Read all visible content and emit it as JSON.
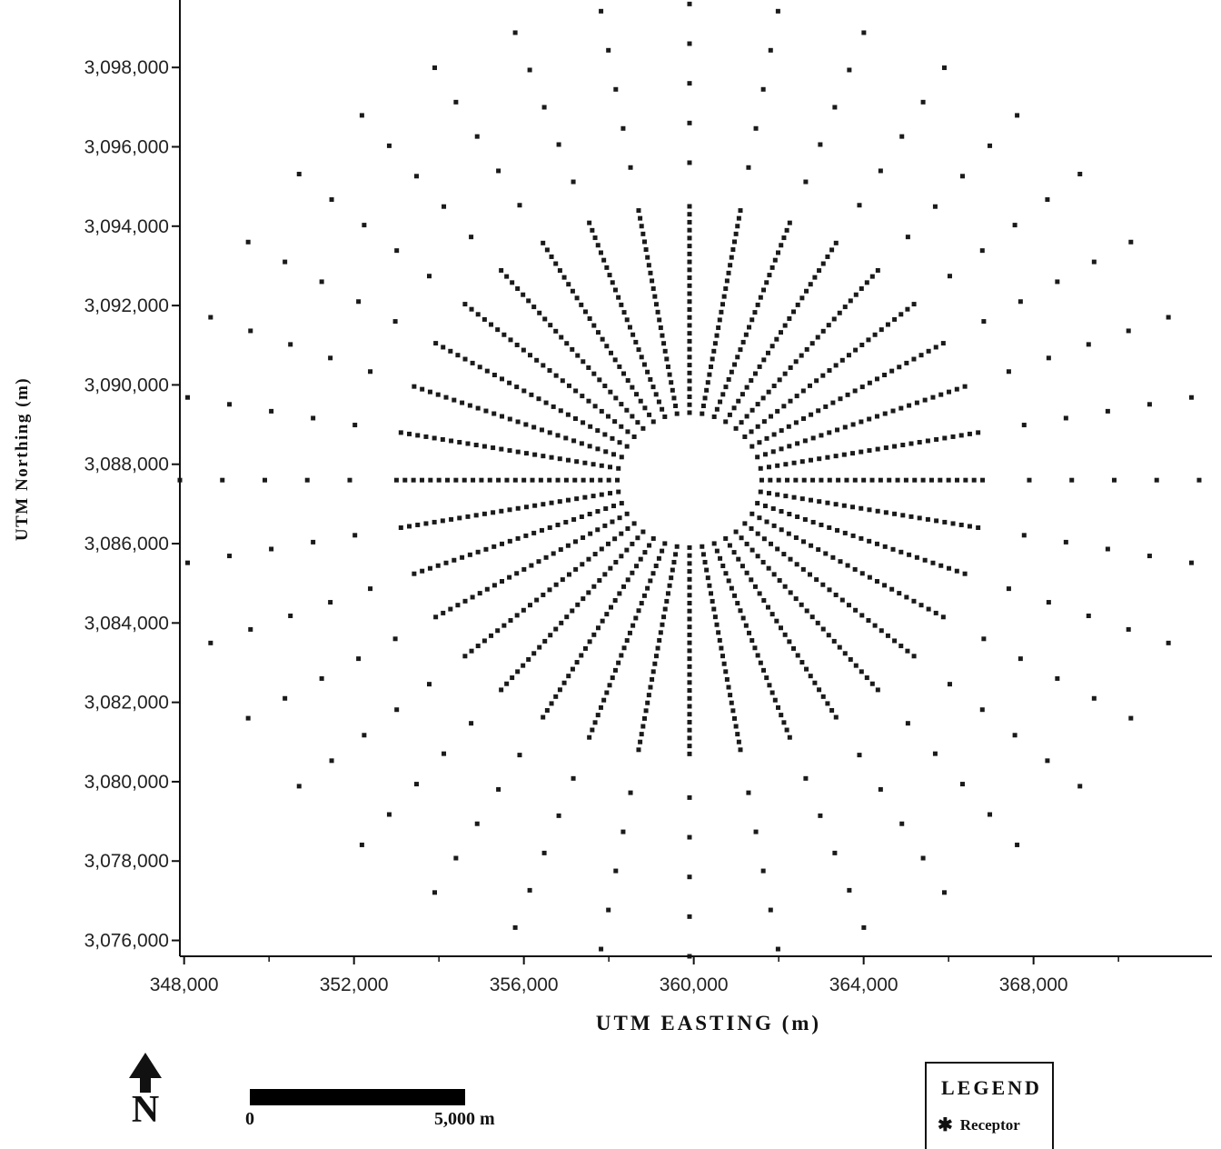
{
  "chart_data": {
    "type": "scatter",
    "title": "",
    "xlabel": "UTM EASTING (m)",
    "ylabel": "UTM Northing (m)",
    "xlim": [
      347900,
      372200
    ],
    "ylim": [
      3075600,
      3099700
    ],
    "x_ticks": [
      348000,
      352000,
      356000,
      360000,
      364000,
      368000
    ],
    "y_ticks": [
      3076000,
      3078000,
      3080000,
      3082000,
      3084000,
      3086000,
      3088000,
      3090000,
      3092000,
      3094000,
      3096000,
      3098000
    ],
    "x_tick_labels": [
      "348,000",
      "352,000",
      "356,000",
      "360,000",
      "364,000",
      "368,000"
    ],
    "y_tick_labels": [
      "3,076,000",
      "3,078,000",
      "3,080,000",
      "3,082,000",
      "3,084,000",
      "3,086,000",
      "3,088,000",
      "3,090,000",
      "3,092,000",
      "3,094,000",
      "3,096,000",
      "3,098,000"
    ],
    "series": [
      {
        "name": "Receptor",
        "grid": {
          "center": [
            359900,
            3087600
          ],
          "directions_deg_step": 10,
          "dense_rings": {
            "start_m": 1700,
            "end_m": 7000,
            "step_m": 200
          },
          "sparse_rings_m": [
            8000,
            9000,
            10000,
            11000,
            12000
          ]
        }
      }
    ],
    "grid": false,
    "legend": {
      "title": "LEGEND",
      "position": "bottom-right"
    }
  },
  "legend": {
    "title": "LEGEND",
    "symbol": "✱",
    "label": "Receptor"
  },
  "scale_bar": {
    "start_label": "0",
    "end_label": "5,000 m"
  },
  "north_arrow": {
    "label": "N"
  },
  "colors": {
    "marker": "#1a1a1a",
    "axis": "#111111",
    "background": "#ffffff"
  }
}
